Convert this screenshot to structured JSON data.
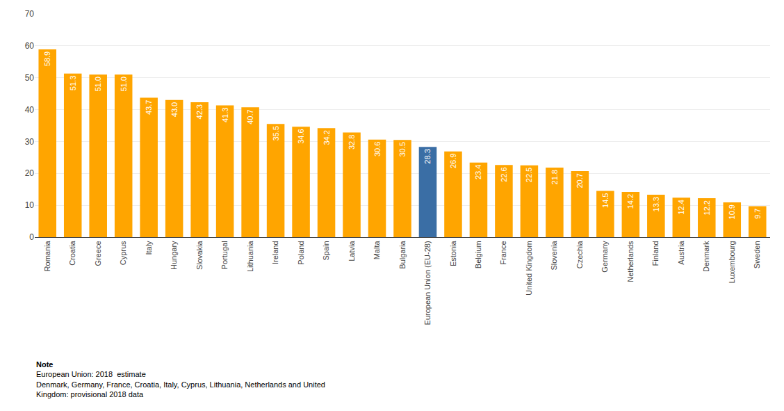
{
  "chart_data": {
    "type": "bar",
    "categories": [
      "Romania",
      "Croatia",
      "Greece",
      "Cyprus",
      "Italy",
      "Hungary",
      "Slovakia",
      "Portugal",
      "Lithuania",
      "Ireland",
      "Poland",
      "Spain",
      "Latvia",
      "Malta",
      "Bulgaria",
      "European Union (EU-28)",
      "Estonia",
      "Belgium",
      "France",
      "United Kingdom",
      "Slovenia",
      "Czechia",
      "Germany",
      "Netherlands",
      "Finland",
      "Austria",
      "Denmark",
      "Luxembourg",
      "Sweden"
    ],
    "values": [
      58.9,
      51.3,
      51.0,
      51.0,
      43.7,
      43.0,
      42.3,
      41.3,
      40.7,
      35.5,
      34.6,
      34.2,
      32.8,
      30.6,
      30.5,
      28.3,
      26.9,
      23.4,
      22.6,
      22.5,
      21.8,
      20.7,
      14.5,
      14.2,
      13.3,
      12.4,
      12.2,
      10.9,
      9.7
    ],
    "value_labels": [
      "58.9",
      "51.3",
      "51.0",
      "51.0",
      "43.7",
      "43.0",
      "42.3",
      "41.3",
      "40.7",
      "35.5",
      "34.6",
      "34.2",
      "32.8",
      "30.6",
      "30.5",
      "28.3",
      "26.9",
      "23.4",
      "22.6",
      "22.5",
      "21.8",
      "20.7",
      "14.5",
      "14.2",
      "13.3",
      "12.4",
      "12.2",
      "10.9",
      "9.7"
    ],
    "colors": [
      "#FFA500",
      "#FFA500",
      "#FFA500",
      "#FFA500",
      "#FFA500",
      "#FFA500",
      "#FFA500",
      "#FFA500",
      "#FFA500",
      "#FFA500",
      "#FFA500",
      "#FFA500",
      "#FFA500",
      "#FFA500",
      "#FFA500",
      "#3A6EA5",
      "#FFA500",
      "#FFA500",
      "#FFA500",
      "#FFA500",
      "#FFA500",
      "#FFA500",
      "#FFA500",
      "#FFA500",
      "#FFA500",
      "#FFA500",
      "#FFA500",
      "#FFA500",
      "#FFA500"
    ],
    "data_labels": true,
    "ylim": [
      0,
      70
    ],
    "yticks": [
      0,
      10,
      20,
      30,
      40,
      50,
      60,
      70
    ],
    "grid": true,
    "annotations": [
      "Note",
      "European Union: 2018  estimate",
      "Denmark, Germany, France, Croatia, Italy, Cyprus, Lithuania, Netherlands and United",
      "Kingdom: provisional 2018 data"
    ]
  }
}
